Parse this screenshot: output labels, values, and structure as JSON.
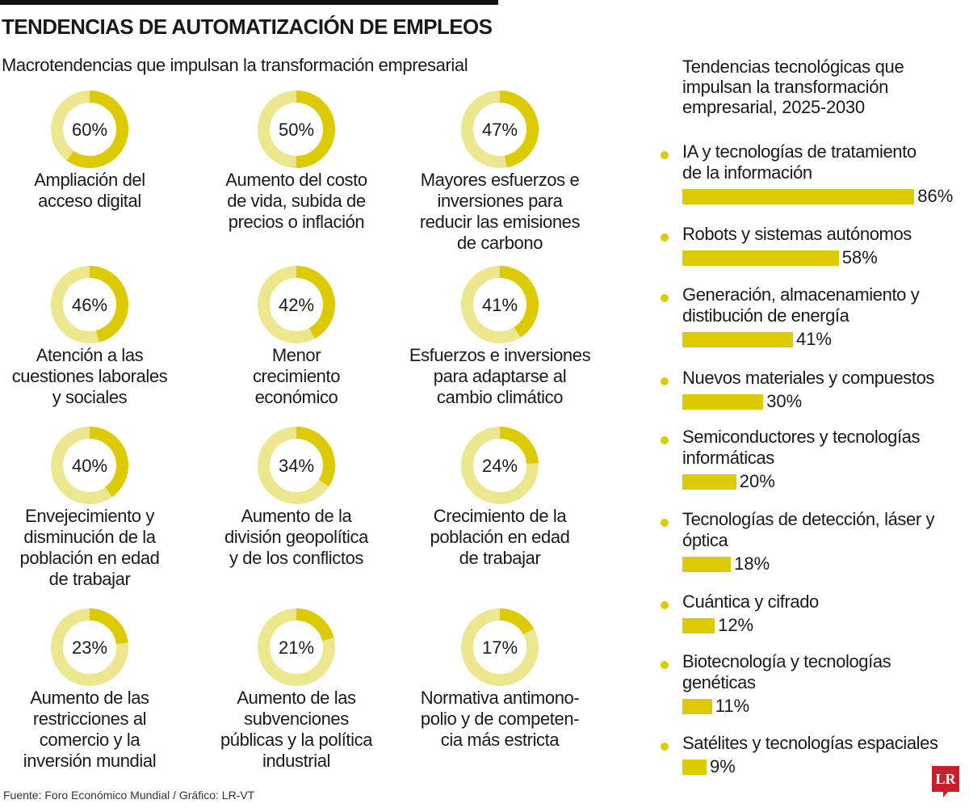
{
  "header": {
    "title": "TENDENCIAS DE AUTOMATIZACIÓN DE EMPLEOS",
    "subtitle": "Macrotendencias que impulsan la transformación empresarial"
  },
  "colors": {
    "accent": "#dccb00",
    "track": "#ece78f",
    "logo": "#c8202a"
  },
  "chart_data": [
    {
      "type": "pie",
      "subtype": "donut",
      "title": "Macrotendencias que impulsan la transformación empresarial",
      "items": [
        {
          "label": "Ampliación del\nacceso digital",
          "value": 60,
          "text": "60%"
        },
        {
          "label": "Aumento del costo\nde vida, subida de\nprecios o inflación",
          "value": 50,
          "text": "50%"
        },
        {
          "label": "Mayores esfuerzos e\ninversiones para\nreducir las emisiones\nde carbono",
          "value": 47,
          "text": "47%"
        },
        {
          "label": "Atención a las\ncuestiones laborales\ny sociales",
          "value": 46,
          "text": "46%"
        },
        {
          "label": "Menor\ncrecimiento\neconómico",
          "value": 42,
          "text": "42%"
        },
        {
          "label": "Esfuerzos e inversiones\npara adaptarse al\ncambio climático",
          "value": 41,
          "text": "41%"
        },
        {
          "label": "Envejecimiento y\ndisminución de la\npoblación en edad\nde trabajar",
          "value": 40,
          "text": "40%"
        },
        {
          "label": "Aumento de la\ndivisión geopolítica\ny de los conflictos",
          "value": 34,
          "text": "34%"
        },
        {
          "label": "Crecimiento de la\npoblación en edad\nde trabajar",
          "value": 24,
          "text": "24%"
        },
        {
          "label": "Aumento de las\nrestricciones al\ncomercio y la\ninversión mundial",
          "value": 23,
          "text": "23%"
        },
        {
          "label": "Aumento de las\nsubvenciones\npúblicas y la política\nindustrial",
          "value": 21,
          "text": "21%"
        },
        {
          "label": "Normativa antimono-\npolio y de competen-\ncia más estricta",
          "value": 17,
          "text": "17%"
        }
      ]
    },
    {
      "type": "bar",
      "orientation": "horizontal",
      "title": "Tendencias tecnológicas que\nimpulsan la transformación\nempresarial, 2025-2030",
      "items": [
        {
          "label": "IA y tecnologías de tratamiento\nde la información",
          "value": 86,
          "text": "86%"
        },
        {
          "label": "Robots y sistemas autónomos",
          "value": 58,
          "text": "58%"
        },
        {
          "label": "Generación, almacenamiento y\ndistibución de energía",
          "value": 41,
          "text": "41%"
        },
        {
          "label": "Nuevos materiales y compuestos",
          "value": 30,
          "text": "30%"
        },
        {
          "label": "Semiconductores y tecnologías\ninformáticas",
          "value": 20,
          "text": "20%"
        },
        {
          "label": "Tecnologías de detección, láser y\nóptica",
          "value": 18,
          "text": "18%"
        },
        {
          "label": "Cuántica y cifrado",
          "value": 12,
          "text": "12%"
        },
        {
          "label": "Biotecnología y tecnologías\ngenéticas",
          "value": 11,
          "text": "11%"
        },
        {
          "label": "Satélites y tecnologías espaciales",
          "value": 9,
          "text": "9%"
        }
      ]
    }
  ],
  "footer": {
    "source": "Fuente: Foro Económico Mundial / Gráfico: LR-VT",
    "logo": "LR"
  }
}
